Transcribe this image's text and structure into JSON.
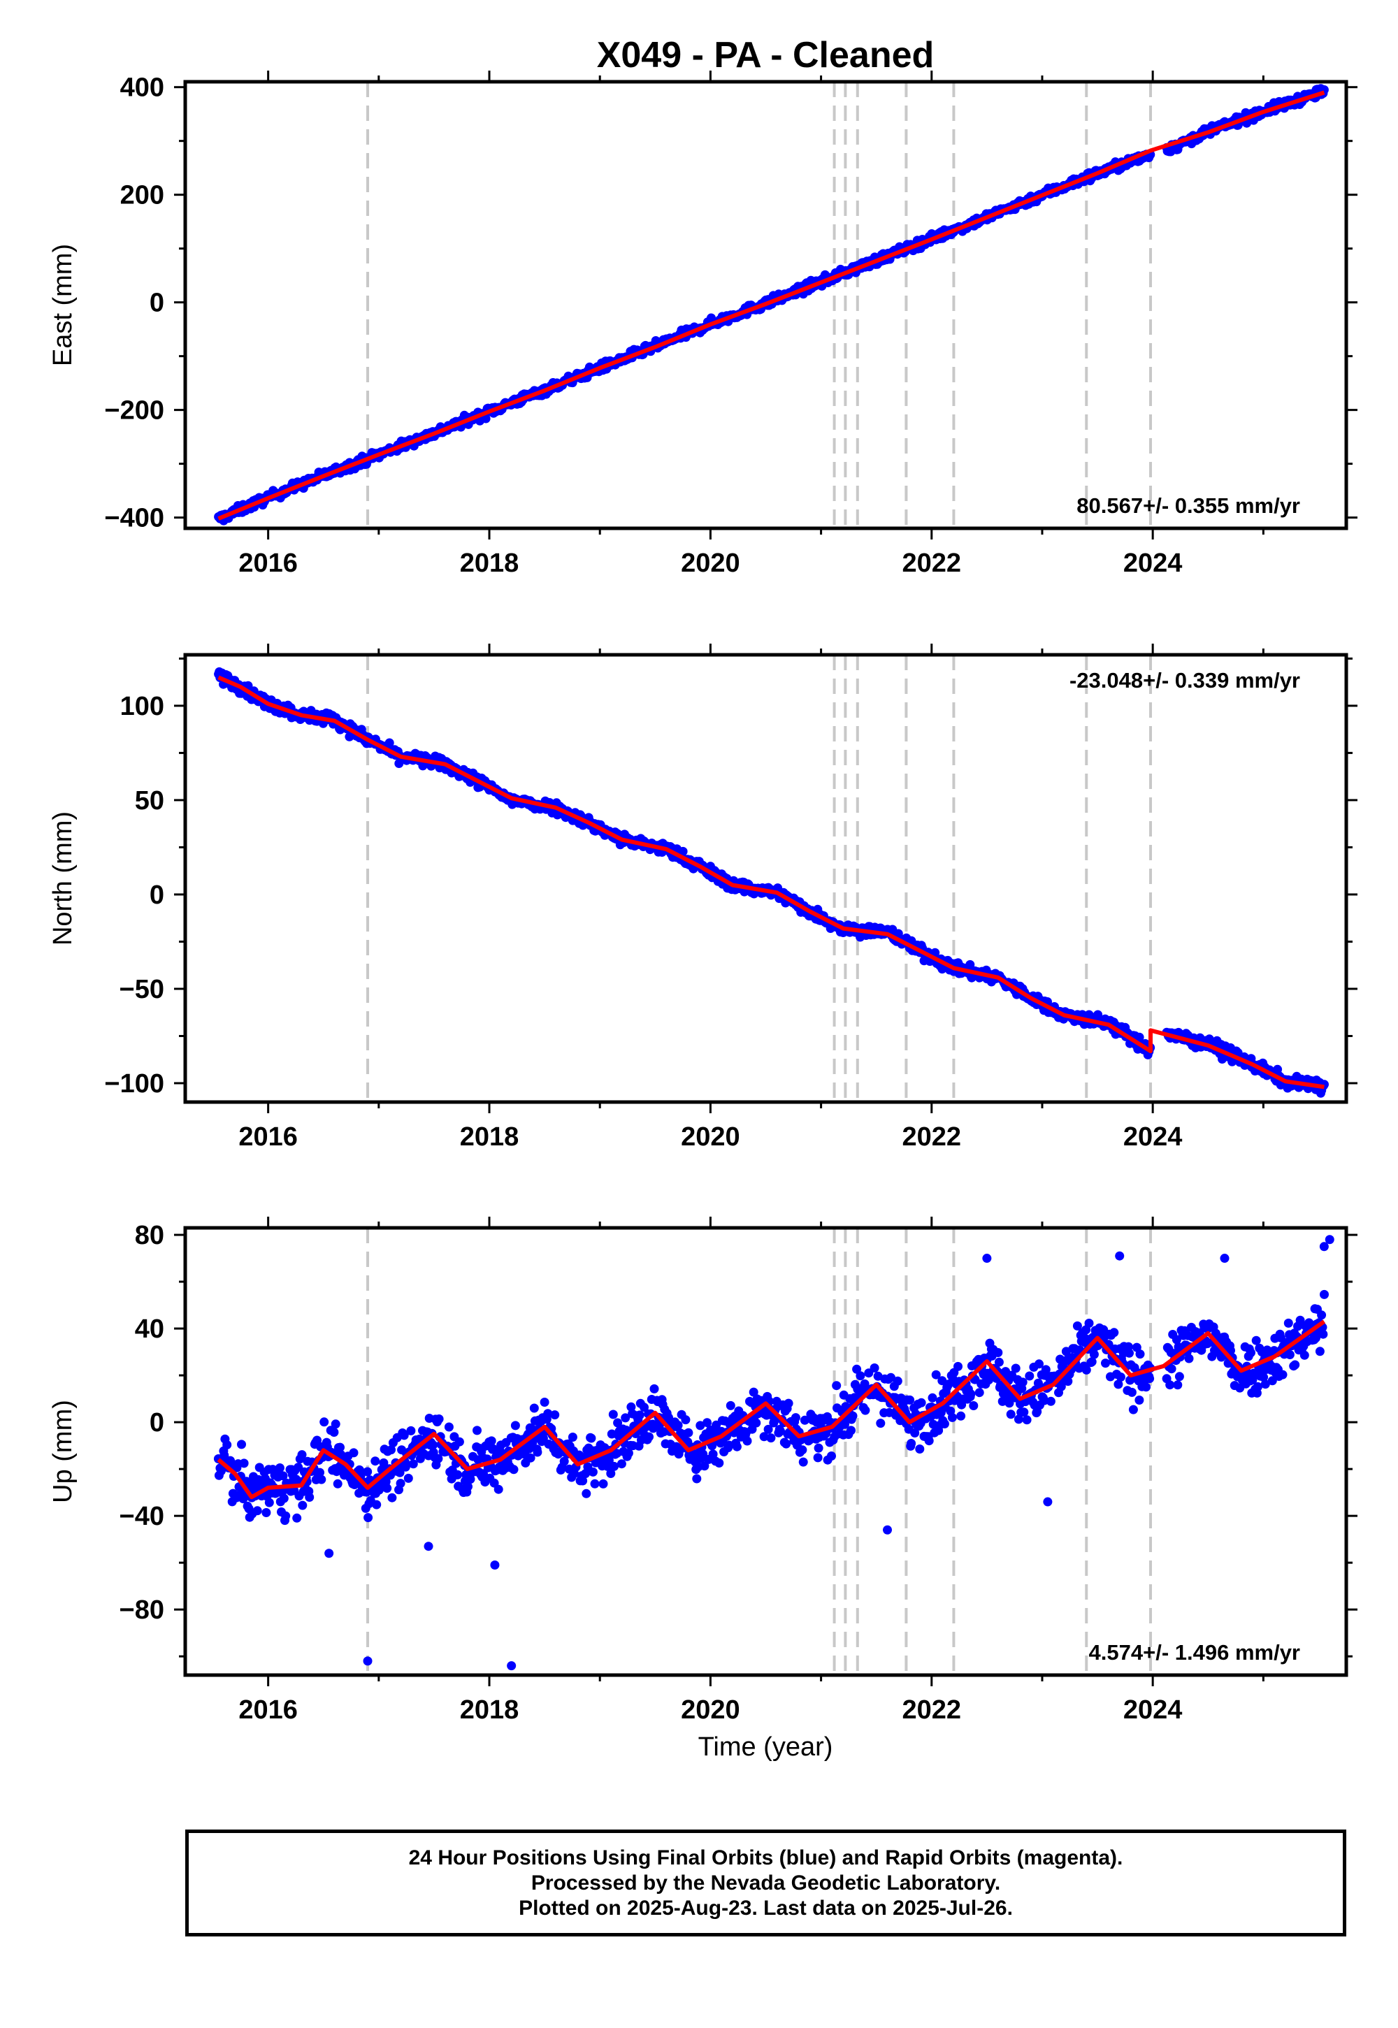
{
  "figure": {
    "title": "X049  - PA - Cleaned",
    "xlabel": "Time (year)",
    "caption": [
      "24 Hour Positions Using Final Orbits (blue) and Rapid Orbits (magenta).",
      "Processed by the Nevada Geodetic Laboratory.",
      "Plotted on 2025-Aug-23. Last data on 2025-Jul-26."
    ]
  },
  "chart_data": [
    {
      "type": "scatter",
      "panel": "east",
      "ylabel": "East (mm)",
      "xlim": [
        2015.25,
        2025.75
      ],
      "ylim": [
        -420,
        410
      ],
      "xticks": [
        2016,
        2018,
        2020,
        2022,
        2024
      ],
      "yticks": [
        -400,
        -200,
        0,
        200,
        400
      ],
      "rate_label": "80.567+/- 0.355 mm/yr",
      "rate_position": "bottom-right",
      "colors": {
        "points": "#0000ff",
        "fit": "#ff0000",
        "events": "#c8c8c8"
      },
      "event_lines": [
        2016.9,
        2021.12,
        2021.22,
        2021.33,
        2021.77,
        2022.2,
        2023.4,
        2023.98
      ],
      "series": [
        {
          "role": "daily positions",
          "x": [
            2015.55,
            2016.0,
            2016.5,
            2017.0,
            2017.5,
            2018.0,
            2018.5,
            2019.0,
            2019.5,
            2020.0,
            2020.5,
            2021.0,
            2021.5,
            2022.0,
            2022.5,
            2023.0,
            2023.5,
            2024.2,
            2024.5,
            2025.0,
            2025.55
          ],
          "y": [
            -403,
            -363,
            -322,
            -283,
            -243,
            -203,
            -163,
            -122,
            -82,
            -40,
            -2,
            38,
            78,
            118,
            158,
            200,
            240,
            290,
            318,
            355,
            392
          ],
          "scatter": 8
        },
        {
          "role": "fit",
          "x": [
            2015.55,
            2016.0,
            2016.5,
            2017.0,
            2017.5,
            2018.0,
            2018.5,
            2019.0,
            2019.5,
            2020.0,
            2020.5,
            2021.0,
            2021.5,
            2022.0,
            2022.5,
            2023.0,
            2023.5,
            2023.98,
            2023.98,
            2024.5,
            2025.0,
            2025.55
          ],
          "y": [
            -402,
            -364,
            -323,
            -283,
            -244,
            -203,
            -164,
            -122,
            -83,
            -41,
            -3,
            37,
            77,
            117,
            158,
            199,
            240,
            282,
            282,
            316,
            354,
            390
          ]
        }
      ]
    },
    {
      "type": "scatter",
      "panel": "north",
      "ylabel": "North (mm)",
      "xlim": [
        2015.25,
        2025.75
      ],
      "ylim": [
        -110,
        127
      ],
      "xticks": [
        2016,
        2018,
        2020,
        2022,
        2024
      ],
      "yticks": [
        -100,
        -50,
        0,
        50,
        100
      ],
      "rate_label": "-23.048+/- 0.339 mm/yr",
      "rate_position": "top-right",
      "colors": {
        "points": "#0000ff",
        "fit": "#ff0000",
        "events": "#c8c8c8"
      },
      "event_lines": [
        2016.9,
        2021.12,
        2021.22,
        2021.33,
        2021.77,
        2022.2,
        2023.4,
        2023.98
      ],
      "series": [
        {
          "role": "daily positions",
          "x": [
            2015.55,
            2015.75,
            2016.0,
            2016.3,
            2016.6,
            2016.9,
            2017.2,
            2017.6,
            2017.9,
            2018.2,
            2018.6,
            2018.9,
            2019.2,
            2019.6,
            2019.9,
            2020.2,
            2020.6,
            2020.9,
            2021.2,
            2021.6,
            2021.9,
            2022.2,
            2022.6,
            2022.9,
            2023.2,
            2023.6,
            2023.98,
            2024.05,
            2024.5,
            2024.9,
            2025.2,
            2025.55
          ],
          "y": [
            116,
            110,
            101,
            95,
            93,
            82,
            73,
            69,
            60,
            50,
            46,
            38,
            29,
            24,
            15,
            5,
            1,
            -9,
            -18,
            -20,
            -30,
            -39,
            -44,
            -55,
            -64,
            -68,
            -83,
            -73,
            -79,
            -90,
            -99,
            -102
          ],
          "scatter": 3
        },
        {
          "role": "fit",
          "x": [
            2015.55,
            2015.75,
            2016.0,
            2016.3,
            2016.6,
            2016.9,
            2017.2,
            2017.6,
            2017.9,
            2018.2,
            2018.6,
            2018.9,
            2019.2,
            2019.6,
            2019.9,
            2020.2,
            2020.6,
            2020.9,
            2021.2,
            2021.6,
            2021.9,
            2022.2,
            2022.6,
            2022.9,
            2023.2,
            2023.6,
            2023.98,
            2023.98,
            2024.5,
            2024.9,
            2025.2,
            2025.55
          ],
          "y": [
            115,
            110,
            101,
            95,
            92,
            82,
            73,
            69,
            60,
            51,
            46,
            38,
            29,
            24,
            15,
            5,
            1,
            -9,
            -18,
            -21,
            -30,
            -39,
            -44,
            -55,
            -64,
            -69,
            -83,
            -72,
            -80,
            -90,
            -99,
            -102
          ]
        }
      ]
    },
    {
      "type": "scatter",
      "panel": "up",
      "ylabel": "Up (mm)",
      "xlim": [
        2015.25,
        2025.75
      ],
      "ylim": [
        -108,
        83
      ],
      "xticks": [
        2016,
        2018,
        2020,
        2022,
        2024
      ],
      "yticks": [
        -80,
        -40,
        0,
        40,
        80
      ],
      "rate_label": "4.574+/- 1.496 mm/yr",
      "rate_position": "bottom-right",
      "colors": {
        "points": "#0000ff",
        "fit": "#ff0000",
        "events": "#c8c8c8"
      },
      "event_lines": [
        2016.9,
        2021.12,
        2021.22,
        2021.33,
        2021.77,
        2022.2,
        2023.4,
        2023.98
      ],
      "outliers": {
        "x": [
          2016.9,
          2018.2,
          2018.05,
          2017.45,
          2016.55,
          2024.65,
          2025.55,
          2025.6,
          2023.05,
          2021.6,
          2022.5,
          2023.7
        ],
        "y": [
          -102,
          -104,
          -61,
          -53,
          -56,
          70,
          75,
          78,
          -34,
          -46,
          70,
          71
        ]
      },
      "series": [
        {
          "role": "daily positions",
          "x": [
            2015.55,
            2015.7,
            2015.85,
            2016.0,
            2016.3,
            2016.5,
            2016.7,
            2016.9,
            2017.1,
            2017.5,
            2017.8,
            2018.1,
            2018.5,
            2018.8,
            2019.1,
            2019.5,
            2019.8,
            2020.1,
            2020.5,
            2020.8,
            2021.1,
            2021.5,
            2021.8,
            2022.1,
            2022.5,
            2022.8,
            2023.1,
            2023.5,
            2023.8,
            2024.1,
            2024.5,
            2024.8,
            2025.1,
            2025.55
          ],
          "y": [
            -16,
            -22,
            -32,
            -28,
            -27,
            -12,
            -18,
            -28,
            -20,
            -5,
            -20,
            -16,
            -2,
            -18,
            -12,
            4,
            -12,
            -6,
            8,
            -6,
            -2,
            16,
            0,
            8,
            26,
            10,
            16,
            36,
            20,
            24,
            38,
            22,
            28,
            43
          ],
          "scatter": 11
        },
        {
          "role": "fit",
          "x": [
            2015.55,
            2015.7,
            2015.85,
            2016.0,
            2016.3,
            2016.5,
            2016.7,
            2016.9,
            2017.1,
            2017.5,
            2017.8,
            2018.1,
            2018.5,
            2018.8,
            2019.1,
            2019.5,
            2019.8,
            2020.1,
            2020.5,
            2020.8,
            2021.1,
            2021.5,
            2021.8,
            2022.1,
            2022.5,
            2022.8,
            2023.1,
            2023.5,
            2023.8,
            2024.1,
            2024.5,
            2024.8,
            2025.1,
            2025.55
          ],
          "y": [
            -16,
            -22,
            -32,
            -28,
            -27,
            -12,
            -18,
            -28,
            -20,
            -5,
            -20,
            -16,
            -2,
            -18,
            -12,
            4,
            -12,
            -6,
            8,
            -6,
            -2,
            16,
            0,
            8,
            26,
            10,
            16,
            36,
            20,
            24,
            38,
            22,
            28,
            43
          ]
        }
      ]
    }
  ]
}
